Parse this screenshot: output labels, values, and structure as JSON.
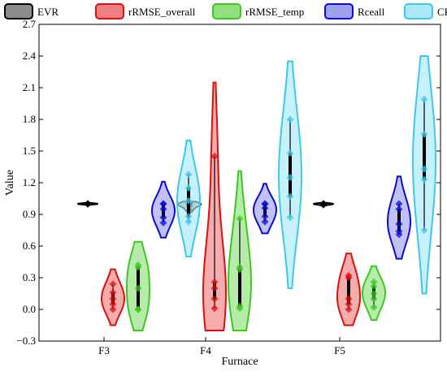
{
  "chart_data": {
    "type": "violin",
    "xlabel": "Furnace",
    "ylabel": "Value",
    "ylim": [
      -0.3,
      2.7
    ],
    "yticks": [
      "−0.3",
      "0.0",
      "0.3",
      "0.6",
      "0.9",
      "1.2",
      "1.5",
      "1.8",
      "2.1",
      "2.4",
      "2.7"
    ],
    "ytick_values": [
      -0.3,
      0.0,
      0.3,
      0.6,
      0.9,
      1.2,
      1.5,
      1.8,
      2.1,
      2.4,
      2.7
    ],
    "categories": [
      "F3",
      "F4",
      "F5"
    ],
    "legend_position": "top",
    "grid": false,
    "series": [
      {
        "name": "EVR",
        "fill": "#8c8c8c",
        "stroke": "#000000",
        "groups": [
          {
            "points": [
              1.0,
              1.0,
              1.0,
              1.0,
              1.0
            ],
            "range": [
              0.99,
              1.01
            ]
          },
          {
            "points": [
              0.94,
              0.98,
              1.0,
              1.0,
              1.0
            ],
            "range": [
              0.92,
              1.02
            ]
          },
          {
            "points": [
              0.99,
              1.0,
              1.0,
              1.0,
              1.0
            ],
            "range": [
              0.98,
              1.01
            ]
          }
        ]
      },
      {
        "name": "rRMSE_overall",
        "fill": "#f08080",
        "stroke": "#d81010",
        "groups": [
          {
            "points": [
              0.0,
              0.05,
              0.1,
              0.16,
              0.24
            ],
            "range": [
              -0.15,
              0.38
            ]
          },
          {
            "points": [
              0.01,
              0.1,
              0.2,
              0.26,
              1.45
            ],
            "range": [
              -0.2,
              2.15
            ]
          },
          {
            "points": [
              0.0,
              0.05,
              0.1,
              0.3,
              0.32
            ],
            "range": [
              -0.15,
              0.53
            ]
          }
        ]
      },
      {
        "name": "rRMSE_temp",
        "fill": "#90e080",
        "stroke": "#3cc820",
        "groups": [
          {
            "points": [
              0.0,
              0.0,
              0.2,
              0.4,
              0.42
            ],
            "range": [
              -0.2,
              0.64
            ]
          },
          {
            "points": [
              0.01,
              0.03,
              0.38,
              0.4,
              0.86
            ],
            "range": [
              -0.2,
              1.31
            ]
          },
          {
            "points": [
              0.02,
              0.1,
              0.15,
              0.22,
              0.26
            ],
            "range": [
              -0.1,
              0.41
            ]
          }
        ]
      },
      {
        "name": "Rceall",
        "fill": "#a0a0f0",
        "stroke": "#0c0cd0",
        "groups": [
          {
            "points": [
              0.82,
              0.87,
              0.95,
              1.0,
              1.0
            ],
            "range": [
              0.68,
              1.21
            ]
          },
          {
            "points": [
              0.83,
              0.88,
              0.96,
              1.0,
              1.0
            ],
            "range": [
              0.72,
              1.19
            ]
          },
          {
            "points": [
              0.71,
              0.74,
              0.81,
              0.95,
              1.0
            ],
            "range": [
              0.48,
              1.26
            ]
          }
        ]
      },
      {
        "name": "CR",
        "fill": "#a8e8f8",
        "stroke": "#40c8e8",
        "groups": [
          {
            "points": [
              0.83,
              0.88,
              1.03,
              1.15,
              1.28
            ],
            "range": [
              0.5,
              1.6
            ]
          },
          {
            "points": [
              0.87,
              1.07,
              1.25,
              1.48,
              1.8
            ],
            "range": [
              0.2,
              2.35
            ]
          },
          {
            "points": [
              0.75,
              1.23,
              1.33,
              1.66,
              1.99
            ],
            "range": [
              0.15,
              2.4
            ]
          }
        ]
      }
    ]
  }
}
